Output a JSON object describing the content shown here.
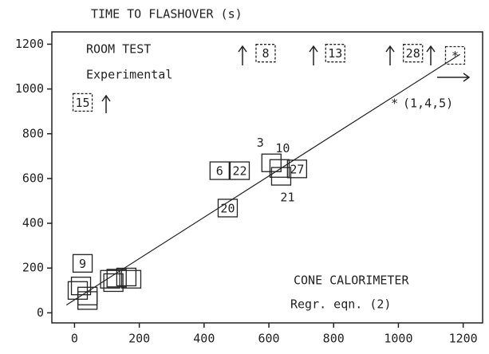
{
  "chart_data": {
    "type": "scatter",
    "title": "TIME TO FLASHOVER (s)",
    "annotations": [
      "ROOM TEST",
      "Experimental",
      "CONE CALORIMETER",
      "Regr. eqn. (2)",
      "(1,4,5)"
    ],
    "x": [
      25,
      590,
      805,
      1045,
      1175,
      448,
      510,
      473,
      608,
      633,
      687,
      638,
      25,
      20,
      40,
      40,
      110,
      130,
      160,
      175,
      120,
      10
    ],
    "values": [
      940,
      1160,
      1160,
      1160,
      1150,
      635,
      635,
      468,
      670,
      645,
      643,
      610,
      221,
      120,
      75,
      55,
      150,
      155,
      160,
      150,
      135,
      100
    ],
    "point_labels": [
      "15",
      "8",
      "13",
      "28",
      "*",
      "6",
      "22",
      "20",
      "3",
      "10",
      "27",
      "21",
      "9",
      null,
      null,
      null,
      null,
      null,
      null,
      null,
      null,
      null
    ],
    "regression": {
      "x": [
        -25,
        1190
      ],
      "y": [
        35,
        1155
      ]
    },
    "color": "#222222",
    "xlim": [
      -70,
      1260
    ],
    "ylim": [
      -45,
      1255
    ],
    "xticks": [
      0,
      200,
      400,
      600,
      800,
      1000,
      1200
    ],
    "yticks": [
      0,
      200,
      400,
      600,
      800,
      1000,
      1200
    ]
  }
}
